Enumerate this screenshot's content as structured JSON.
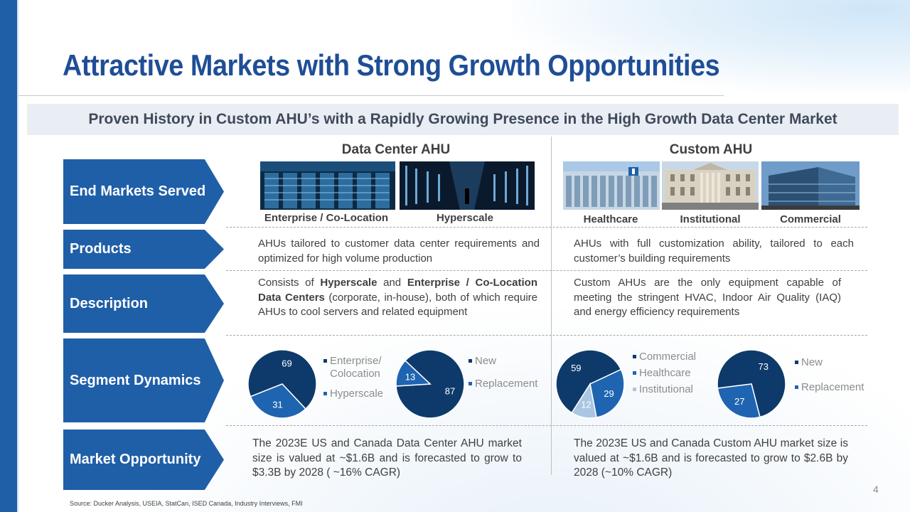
{
  "title": "Attractive Markets with Strong Growth Opportunities",
  "subtitle": "Proven History in Custom AHU’s with a Rapidly Growing Presence in the High Growth Data Center Market",
  "columns": {
    "data_center": "Data Center AHU",
    "custom": "Custom AHU"
  },
  "rows": {
    "end_markets": "End Markets Served",
    "products": "Products",
    "description": "Description",
    "segment_dynamics": "Segment Dynamics",
    "market_opportunity": "Market Opportunity"
  },
  "end_markets": {
    "enterprise": "Enterprise / Co-Location",
    "hyperscale": "Hyperscale",
    "healthcare": "Healthcare",
    "institutional": "Institutional",
    "commercial": "Commercial"
  },
  "products": {
    "data_center": "AHUs tailored to customer data center requirements and optimized for high volume production",
    "custom": "AHUs with full customization ability, tailored to each customer’s building requirements"
  },
  "description": {
    "dc_p1": "Consists of ",
    "dc_b1": "Hyperscale",
    "dc_p2": " and ",
    "dc_b2": "Enterprise / Co-Location Data Centers",
    "dc_p3": " (corporate, in-house), both of which require AHUs to cool servers and related equipment",
    "custom": "Custom AHUs are the only equipment capable of meeting the stringent HVAC, Indoor Air Quality (IAQ) and energy efficiency requirements"
  },
  "market_opportunity": {
    "data_center": "The 2023E US and Canada Data Center AHU market size is valued at ~$1.6B and is forecasted to grow to $3.3B by 2028 ( ~16% CAGR)",
    "custom": "The 2023E US and Canada Custom AHU market size is valued at ~$1.6B and is forecasted to grow to $2.6B by 2028 (~10% CAGR)"
  },
  "chart_data": [
    {
      "type": "pie",
      "categories": [
        "Enterprise/ Colocation",
        "Hyperscale"
      ],
      "values": [
        69,
        31
      ],
      "colors": [
        "#0e3a6b",
        "#1f64b0"
      ]
    },
    {
      "type": "pie",
      "categories": [
        "New",
        "Replacement"
      ],
      "values": [
        87,
        13
      ],
      "colors": [
        "#0e3a6b",
        "#1f64b0"
      ]
    },
    {
      "type": "pie",
      "categories": [
        "Commercial",
        "Healthcare",
        "Institutional"
      ],
      "values": [
        59,
        29,
        12
      ],
      "colors": [
        "#0e3a6b",
        "#1f64b0",
        "#a9c6e3"
      ]
    },
    {
      "type": "pie",
      "categories": [
        "New",
        "Replacement"
      ],
      "values": [
        73,
        27
      ],
      "colors": [
        "#0e3a6b",
        "#1f64b0"
      ]
    }
  ],
  "source": "Source: Ducker Analysis, USEIA, StatCan, ISED Canada, Industry Interviews, FMI",
  "page_number": "4"
}
